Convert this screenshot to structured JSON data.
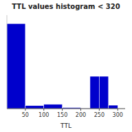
{
  "chart_data": {
    "type": "histogram",
    "title": "TTL values histogram < 320",
    "x_label": "TTL",
    "bins": [
      0,
      50,
      100,
      150,
      200,
      225,
      250,
      275,
      300,
      320
    ],
    "values": [
      10000,
      350,
      500,
      120,
      30,
      3800,
      3800,
      400,
      0
    ],
    "color": "#0000cc",
    "xlim": [
      0,
      320
    ],
    "ylim": [
      0,
      11000
    ],
    "xticks": [
      50,
      100,
      150,
      200,
      250,
      300
    ],
    "tick_labels": "x"
  }
}
